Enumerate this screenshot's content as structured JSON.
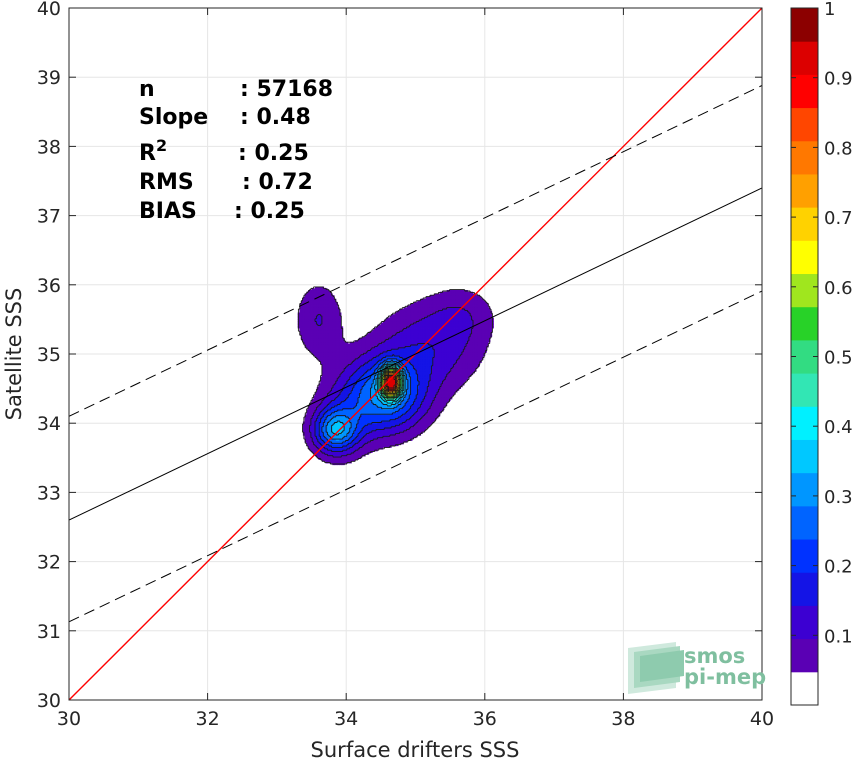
{
  "chart_data": {
    "type": "scatter",
    "subtype": "density-contour",
    "xlabel": "Surface drifters SSS",
    "ylabel": "Satellite SSS",
    "xlim": [
      30,
      40
    ],
    "ylim": [
      30,
      40
    ],
    "x_ticks": [
      "30",
      "32",
      "34",
      "36",
      "38",
      "40"
    ],
    "y_ticks": [
      "30",
      "31",
      "32",
      "33",
      "34",
      "35",
      "36",
      "37",
      "38",
      "39",
      "40"
    ],
    "grid": true,
    "stats": [
      {
        "label": "n",
        "sep": ": ",
        "value": "57168"
      },
      {
        "label": "Slope",
        "sep": ": ",
        "value": "0.48"
      },
      {
        "label": "R",
        "sup": "2",
        "sep": ": ",
        "value": "0.25"
      },
      {
        "label": "RMS",
        "sep": ": ",
        "value": "0.72"
      },
      {
        "label": "BIAS",
        "sep": ": ",
        "value": "0.25"
      }
    ],
    "lines": [
      {
        "kind": "identity",
        "color": "#ff0000",
        "style": "solid",
        "x": [
          30,
          40
        ],
        "y": [
          30,
          40
        ]
      },
      {
        "kind": "regression",
        "color": "#000000",
        "style": "solid",
        "x": [
          30,
          40
        ],
        "y": [
          32.6,
          37.4
        ]
      },
      {
        "kind": "upper-bound",
        "color": "#000000",
        "style": "dashed",
        "x": [
          30,
          40
        ],
        "y": [
          34.1,
          38.88
        ]
      },
      {
        "kind": "lower-bound",
        "color": "#000000",
        "style": "dashed",
        "x": [
          30,
          40
        ],
        "y": [
          31.13,
          35.91
        ]
      }
    ],
    "density_peak": {
      "x": 34.65,
      "y": 34.6,
      "value": 1.0
    },
    "secondary_cluster": {
      "x": 33.6,
      "y": 35.5,
      "value": 0.1
    },
    "colorbar": {
      "range": [
        0,
        1
      ],
      "tick_labels": [
        "0.1",
        "0.2",
        "0.3",
        "0.4",
        "0.5",
        "0.6",
        "0.7",
        "0.8",
        "0.9",
        "1"
      ],
      "tick_values": [
        0.1,
        0.2,
        0.3,
        0.4,
        0.5,
        0.6,
        0.7,
        0.8,
        0.9,
        1.0
      ],
      "levels": [
        0.05,
        0.1,
        0.15,
        0.2,
        0.25,
        0.3,
        0.35,
        0.4,
        0.45,
        0.5,
        0.55,
        0.6,
        0.65,
        0.7,
        0.75,
        0.8,
        0.85,
        0.9,
        0.95
      ],
      "colors": [
        "#ffffff",
        "#5a00b4",
        "#3c00d2",
        "#1414e6",
        "#0032ff",
        "#0064ff",
        "#0096ff",
        "#00c8ff",
        "#00f0ff",
        "#32e6b4",
        "#32dc82",
        "#28d228",
        "#a0e61e",
        "#ffff00",
        "#ffd200",
        "#ffa000",
        "#ff7800",
        "#ff4600",
        "#ff0000",
        "#dc0000",
        "#8c0000"
      ]
    }
  },
  "logo": {
    "line1": "smos",
    "line2": "pi-mep"
  }
}
